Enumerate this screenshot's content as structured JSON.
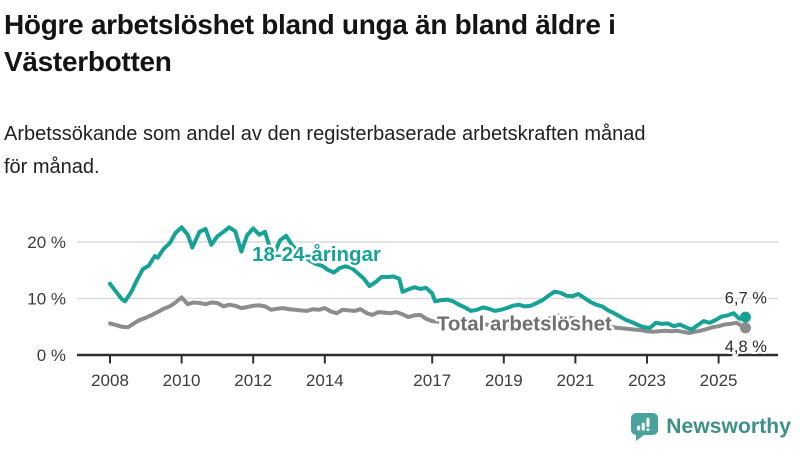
{
  "header": {
    "title_lines": [
      "Högre arbetslöshet bland unga än bland äldre i",
      "Västerbotten"
    ],
    "subtitle_lines": [
      "Arbetssökande som andel av den registerbaserade arbetskraften månad",
      "för månad."
    ]
  },
  "chart_data": {
    "type": "line",
    "title": "Högre arbetslöshet bland unga än bland äldre i Västerbotten",
    "subtitle": "Arbetssökande som andel av den registerbaserade arbetskraften månad för månad.",
    "unit": "%",
    "xlim": [
      2008,
      2025.9
    ],
    "ylim": [
      0,
      24
    ],
    "grid": "horizontal",
    "legend_position": "inline-labels",
    "colors": {
      "grid": "#D9D9D9",
      "axis": "#2F2F2F",
      "tick_text": "#3C3C3C",
      "halo": "#FFFFFF"
    },
    "y_ticks": [
      {
        "value": 0,
        "label": "0 %"
      },
      {
        "value": 10,
        "label": "10 %"
      },
      {
        "value": 20,
        "label": "20 %"
      }
    ],
    "x_ticks": [
      {
        "year": 2008,
        "label": "2008"
      },
      {
        "year": 2010,
        "label": "2010"
      },
      {
        "year": 2012,
        "label": "2012"
      },
      {
        "year": 2014,
        "label": "2014"
      },
      {
        "year": 2017,
        "label": "2017"
      },
      {
        "year": 2019,
        "label": "2019"
      },
      {
        "year": 2021,
        "label": "2021"
      },
      {
        "year": 2023,
        "label": "2023"
      },
      {
        "year": 2025,
        "label": "2025"
      }
    ],
    "series": [
      {
        "name": "Total arbetslöshet",
        "color": "#8C8C8C",
        "label_color": "#6F6F6F",
        "label_pos": [
          2017.13,
          5.6
        ],
        "end_label": "4,8 %",
        "end_label_dy": 24,
        "points": [
          [
            2008.0,
            5.6
          ],
          [
            2008.17,
            5.3
          ],
          [
            2008.33,
            5.0
          ],
          [
            2008.5,
            4.9
          ],
          [
            2008.67,
            5.6
          ],
          [
            2008.83,
            6.2
          ],
          [
            2009.0,
            6.6
          ],
          [
            2009.17,
            7.1
          ],
          [
            2009.33,
            7.6
          ],
          [
            2009.5,
            8.2
          ],
          [
            2009.67,
            8.6
          ],
          [
            2009.83,
            9.3
          ],
          [
            2010.0,
            10.2
          ],
          [
            2010.17,
            9.0
          ],
          [
            2010.33,
            9.3
          ],
          [
            2010.5,
            9.2
          ],
          [
            2010.67,
            9.0
          ],
          [
            2010.83,
            9.3
          ],
          [
            2011.0,
            9.2
          ],
          [
            2011.17,
            8.6
          ],
          [
            2011.33,
            8.9
          ],
          [
            2011.5,
            8.7
          ],
          [
            2011.67,
            8.3
          ],
          [
            2011.83,
            8.5
          ],
          [
            2012.0,
            8.7
          ],
          [
            2012.17,
            8.8
          ],
          [
            2012.33,
            8.6
          ],
          [
            2012.5,
            8.0
          ],
          [
            2012.67,
            8.2
          ],
          [
            2012.83,
            8.3
          ],
          [
            2013.0,
            8.1
          ],
          [
            2013.17,
            8.0
          ],
          [
            2013.33,
            7.9
          ],
          [
            2013.5,
            7.8
          ],
          [
            2013.67,
            8.1
          ],
          [
            2013.83,
            8.0
          ],
          [
            2014.0,
            8.3
          ],
          [
            2014.17,
            7.7
          ],
          [
            2014.33,
            7.4
          ],
          [
            2014.5,
            8.0
          ],
          [
            2014.67,
            7.9
          ],
          [
            2014.83,
            7.8
          ],
          [
            2015.0,
            8.1
          ],
          [
            2015.17,
            7.4
          ],
          [
            2015.33,
            7.1
          ],
          [
            2015.5,
            7.6
          ],
          [
            2015.67,
            7.5
          ],
          [
            2015.83,
            7.4
          ],
          [
            2016.0,
            7.6
          ],
          [
            2016.17,
            7.2
          ],
          [
            2016.33,
            6.7
          ],
          [
            2016.5,
            7.0
          ],
          [
            2016.67,
            7.1
          ],
          [
            2016.83,
            6.4
          ],
          [
            2017.0,
            6.0
          ],
          [
            2017.25,
            5.8
          ],
          [
            2017.5,
            5.6
          ],
          [
            2017.75,
            5.5
          ],
          [
            2018.0,
            5.5
          ],
          [
            2018.25,
            5.3
          ],
          [
            2018.5,
            5.4
          ],
          [
            2018.75,
            5.2
          ],
          [
            2019.0,
            5.1
          ],
          [
            2019.25,
            5.2
          ],
          [
            2019.5,
            5.2
          ],
          [
            2019.75,
            5.4
          ],
          [
            2020.0,
            5.6
          ],
          [
            2020.25,
            6.4
          ],
          [
            2020.5,
            7.0
          ],
          [
            2020.75,
            6.7
          ],
          [
            2021.0,
            6.4
          ],
          [
            2021.25,
            6.0
          ],
          [
            2021.5,
            5.7
          ],
          [
            2021.75,
            5.3
          ],
          [
            2022.0,
            5.0
          ],
          [
            2022.17,
            4.8
          ],
          [
            2022.33,
            4.7
          ],
          [
            2022.5,
            4.6
          ],
          [
            2022.67,
            4.5
          ],
          [
            2022.83,
            4.4
          ],
          [
            2023.0,
            4.2
          ],
          [
            2023.17,
            4.1
          ],
          [
            2023.33,
            4.2
          ],
          [
            2023.5,
            4.3
          ],
          [
            2023.67,
            4.2
          ],
          [
            2023.83,
            4.3
          ],
          [
            2024.0,
            4.1
          ],
          [
            2024.17,
            3.9
          ],
          [
            2024.33,
            4.1
          ],
          [
            2024.5,
            4.3
          ],
          [
            2024.67,
            4.6
          ],
          [
            2024.83,
            4.9
          ],
          [
            2025.0,
            5.1
          ],
          [
            2025.17,
            5.4
          ],
          [
            2025.33,
            5.5
          ],
          [
            2025.5,
            5.7
          ],
          [
            2025.58,
            5.4
          ],
          [
            2025.75,
            4.8
          ]
        ]
      },
      {
        "name": "18-24-åringar",
        "color": "#17A295",
        "label_color": "#17A295",
        "label_pos": [
          2011.97,
          17.9
        ],
        "end_label": "6,7 %",
        "end_label_dy": -13.5,
        "points": [
          [
            2008.0,
            12.6
          ],
          [
            2008.17,
            11.2
          ],
          [
            2008.33,
            9.9
          ],
          [
            2008.42,
            9.5
          ],
          [
            2008.58,
            11.0
          ],
          [
            2008.75,
            13.2
          ],
          [
            2008.92,
            15.2
          ],
          [
            2009.08,
            15.8
          ],
          [
            2009.25,
            17.5
          ],
          [
            2009.33,
            17.2
          ],
          [
            2009.5,
            18.8
          ],
          [
            2009.67,
            19.8
          ],
          [
            2009.83,
            21.6
          ],
          [
            2010.0,
            22.6
          ],
          [
            2010.17,
            21.3
          ],
          [
            2010.3,
            19.0
          ],
          [
            2010.5,
            21.8
          ],
          [
            2010.67,
            22.3
          ],
          [
            2010.83,
            19.5
          ],
          [
            2011.0,
            21.0
          ],
          [
            2011.17,
            21.8
          ],
          [
            2011.33,
            22.6
          ],
          [
            2011.5,
            21.9
          ],
          [
            2011.67,
            18.3
          ],
          [
            2011.83,
            21.2
          ],
          [
            2012.0,
            22.4
          ],
          [
            2012.17,
            21.3
          ],
          [
            2012.33,
            21.8
          ],
          [
            2012.5,
            18.3
          ],
          [
            2012.58,
            17.8
          ],
          [
            2012.75,
            20.3
          ],
          [
            2012.92,
            21.1
          ],
          [
            2013.08,
            19.5
          ],
          [
            2013.25,
            18.3
          ],
          [
            2013.42,
            17.4
          ],
          [
            2013.58,
            16.7
          ],
          [
            2013.75,
            16.1
          ],
          [
            2013.92,
            15.8
          ],
          [
            2014.08,
            15.1
          ],
          [
            2014.25,
            14.6
          ],
          [
            2014.42,
            15.4
          ],
          [
            2014.58,
            15.7
          ],
          [
            2014.75,
            15.4
          ],
          [
            2014.92,
            14.5
          ],
          [
            2015.08,
            13.6
          ],
          [
            2015.25,
            12.2
          ],
          [
            2015.42,
            12.9
          ],
          [
            2015.58,
            13.8
          ],
          [
            2015.75,
            13.8
          ],
          [
            2015.92,
            13.9
          ],
          [
            2016.08,
            13.5
          ],
          [
            2016.17,
            11.2
          ],
          [
            2016.33,
            11.6
          ],
          [
            2016.5,
            12.0
          ],
          [
            2016.67,
            11.7
          ],
          [
            2016.83,
            11.9
          ],
          [
            2017.0,
            10.9
          ],
          [
            2017.08,
            9.5
          ],
          [
            2017.25,
            9.7
          ],
          [
            2017.42,
            9.8
          ],
          [
            2017.58,
            9.5
          ],
          [
            2017.75,
            8.9
          ],
          [
            2017.92,
            8.4
          ],
          [
            2018.08,
            7.8
          ],
          [
            2018.25,
            8.0
          ],
          [
            2018.42,
            8.4
          ],
          [
            2018.58,
            8.2
          ],
          [
            2018.75,
            7.8
          ],
          [
            2018.92,
            8.0
          ],
          [
            2019.08,
            8.3
          ],
          [
            2019.25,
            8.7
          ],
          [
            2019.42,
            8.9
          ],
          [
            2019.58,
            8.6
          ],
          [
            2019.75,
            8.7
          ],
          [
            2019.92,
            9.2
          ],
          [
            2020.08,
            9.7
          ],
          [
            2020.25,
            10.5
          ],
          [
            2020.42,
            11.2
          ],
          [
            2020.58,
            11.0
          ],
          [
            2020.75,
            10.5
          ],
          [
            2020.92,
            10.4
          ],
          [
            2021.08,
            10.8
          ],
          [
            2021.25,
            10.1
          ],
          [
            2021.42,
            9.4
          ],
          [
            2021.58,
            8.9
          ],
          [
            2021.75,
            8.6
          ],
          [
            2021.92,
            7.9
          ],
          [
            2022.08,
            7.4
          ],
          [
            2022.25,
            6.8
          ],
          [
            2022.42,
            6.2
          ],
          [
            2022.58,
            5.8
          ],
          [
            2022.75,
            5.3
          ],
          [
            2022.92,
            4.9
          ],
          [
            2023.08,
            4.8
          ],
          [
            2023.25,
            5.7
          ],
          [
            2023.42,
            5.5
          ],
          [
            2023.58,
            5.6
          ],
          [
            2023.75,
            5.1
          ],
          [
            2023.92,
            5.4
          ],
          [
            2024.08,
            4.9
          ],
          [
            2024.25,
            4.5
          ],
          [
            2024.42,
            5.3
          ],
          [
            2024.58,
            6.0
          ],
          [
            2024.75,
            5.7
          ],
          [
            2024.92,
            6.2
          ],
          [
            2025.08,
            6.8
          ],
          [
            2025.25,
            7.0
          ],
          [
            2025.42,
            7.4
          ],
          [
            2025.58,
            6.4
          ],
          [
            2025.75,
            6.7
          ]
        ]
      }
    ]
  },
  "brand": {
    "name": "Newsworthy",
    "text_color": "#3E8F89",
    "icon": "newsworthy-bubble-chart-icon",
    "icon_color": "#49A39C"
  }
}
